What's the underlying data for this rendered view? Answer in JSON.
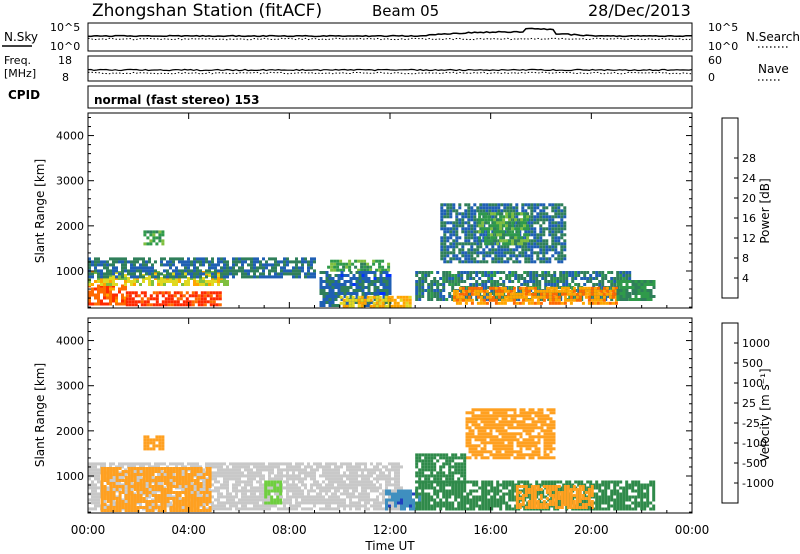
{
  "header": {
    "title": "Zhongshan Station (fitACF)",
    "beam": "Beam 05",
    "date": "28/Dec/2013"
  },
  "noise_panel": {
    "left_label": "N.Sky",
    "left_ticks": [
      "10^5",
      "10^0"
    ],
    "right_label": "N.Search",
    "right_ticks": [
      "10^5",
      "10^0"
    ]
  },
  "freq_panel": {
    "left_label_1": "Freq.",
    "left_label_2": "[MHz]",
    "left_ticks": [
      "18",
      "8"
    ],
    "right_label": "Nave",
    "right_ticks": [
      "60",
      "0"
    ]
  },
  "cpid": {
    "label": "CPID",
    "text": "normal (fast stereo) 153"
  },
  "chart_data": [
    {
      "type": "heatmap",
      "name": "power",
      "ylabel": "Slant Range [km]",
      "yticks": [
        "1000",
        "2000",
        "3000",
        "4000"
      ],
      "ylim": [
        180,
        4500
      ],
      "xlim": [
        0,
        24
      ],
      "colorbar": {
        "label": "Power [dB]",
        "ticks": [
          "4",
          "8",
          "12",
          "16",
          "20",
          "24",
          "28"
        ],
        "colors": [
          "#0033ff",
          "#1f5fb4",
          "#2f7f5a",
          "#2f9a4a",
          "#7fbf3f",
          "#e0d820",
          "#ffa500",
          "#ff6a00",
          "#ff2a00"
        ]
      },
      "regions": [
        {
          "t0": 0.0,
          "t1": 1.5,
          "r0": 250,
          "r1": 700,
          "level": 28
        },
        {
          "t0": 1.5,
          "t1": 5.2,
          "r0": 250,
          "r1": 550,
          "level": 30
        },
        {
          "t0": 0.0,
          "t1": 5.5,
          "r0": 700,
          "r1": 1000,
          "level": 20
        },
        {
          "t0": 0.0,
          "t1": 9.0,
          "r0": 900,
          "r1": 1300,
          "level": 9
        },
        {
          "t0": 2.2,
          "t1": 3.0,
          "r0": 1600,
          "r1": 1900,
          "level": 14
        },
        {
          "t0": 9.5,
          "t1": 12.0,
          "r0": 1000,
          "r1": 1250,
          "level": 14
        },
        {
          "t0": 9.2,
          "t1": 12.0,
          "r0": 250,
          "r1": 1000,
          "level": 8
        },
        {
          "t0": 10.0,
          "t1": 12.8,
          "r0": 250,
          "r1": 450,
          "level": 22
        },
        {
          "t0": 13.0,
          "t1": 21.5,
          "r0": 400,
          "r1": 1000,
          "level": 10
        },
        {
          "t0": 14.5,
          "t1": 21.0,
          "r0": 280,
          "r1": 650,
          "level": 25
        },
        {
          "t0": 14.0,
          "t1": 19.0,
          "r0": 1200,
          "r1": 2500,
          "level": 9
        },
        {
          "t0": 15.5,
          "t1": 17.5,
          "r0": 1600,
          "r1": 2300,
          "level": 14
        },
        {
          "t0": 21.0,
          "t1": 22.5,
          "r0": 400,
          "r1": 800,
          "level": 12
        }
      ]
    },
    {
      "type": "heatmap",
      "name": "velocity",
      "ylabel": "Slant Range [km]",
      "yticks": [
        "1000",
        "2000",
        "3000",
        "4000"
      ],
      "ylim": [
        180,
        4500
      ],
      "xlim": [
        0,
        24
      ],
      "xticks": [
        "00:00",
        "04:00",
        "08:00",
        "12:00",
        "16:00",
        "20:00",
        "00:00"
      ],
      "xlabel": "Time UT",
      "colorbar": {
        "label": "Velocity [m s⁻¹]",
        "ticks": [
          "1000",
          "500",
          "100",
          "25",
          "-25",
          "-100",
          "-500",
          "-1000"
        ],
        "colors": [
          "#1f3fbf",
          "#3f8fbf",
          "#2f8a4a",
          "#6fcf3f",
          "#c8c8c8",
          "#ffcc40",
          "#ffa020",
          "#ff6a00",
          "#ff1a00"
        ]
      },
      "regions": [
        {
          "t0": 0.0,
          "t1": 12.5,
          "r0": 250,
          "r1": 1300,
          "level": 0
        },
        {
          "t0": 0.5,
          "t1": 4.8,
          "r0": 250,
          "r1": 1200,
          "level": -200
        },
        {
          "t0": 2.2,
          "t1": 3.0,
          "r0": 1600,
          "r1": 1900,
          "level": -200
        },
        {
          "t0": 7.0,
          "t1": 7.6,
          "r0": 400,
          "r1": 900,
          "level": 60
        },
        {
          "t0": 11.8,
          "t1": 13.2,
          "r0": 250,
          "r1": 700,
          "level": 800
        },
        {
          "t0": 13.0,
          "t1": 22.5,
          "r0": 250,
          "r1": 900,
          "level": 200
        },
        {
          "t0": 17.0,
          "t1": 20.0,
          "r0": 300,
          "r1": 800,
          "level": -150
        },
        {
          "t0": 15.0,
          "t1": 18.5,
          "r0": 1400,
          "r1": 2500,
          "level": -300
        },
        {
          "t0": 13.0,
          "t1": 15.0,
          "r0": 900,
          "r1": 1500,
          "level": 150
        }
      ]
    }
  ]
}
